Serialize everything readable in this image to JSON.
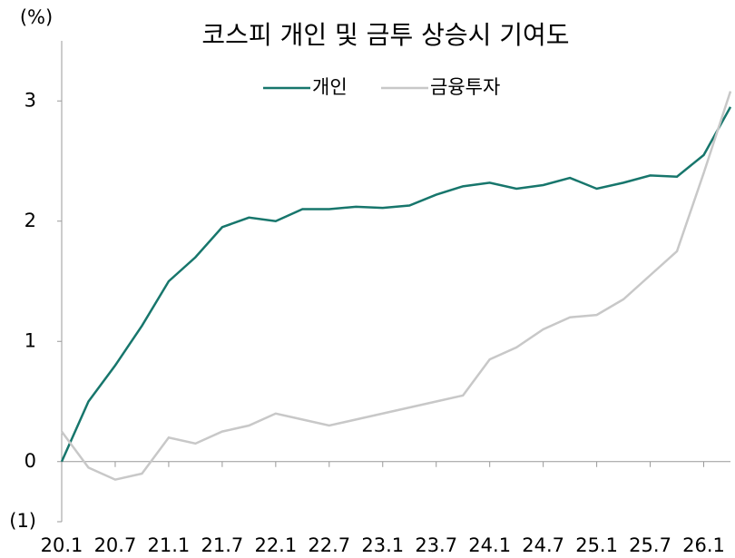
{
  "chart_data": {
    "type": "line",
    "title": "코스피 개인 및 금투 상승시 기여도",
    "y_label": "(%)",
    "x": [
      2020,
      2020.25,
      2020.5,
      2020.75,
      2021,
      2021.25,
      2021.5,
      2021.75,
      2022,
      2022.25,
      2022.5,
      2022.75,
      2023,
      2023.25,
      2023.5,
      2023.75,
      2024,
      2024.25,
      2024.5,
      2024.75,
      2025,
      2025.25,
      2025.5,
      2025.75,
      2026,
      2026.25
    ],
    "series": [
      {
        "name": "개인",
        "color": "#17766c",
        "values": [
          0,
          0.5,
          0.8,
          1.13,
          1.5,
          1.7,
          1.95,
          2.03,
          2.0,
          2.1,
          2.1,
          2.12,
          2.11,
          2.13,
          2.22,
          2.29,
          2.32,
          2.27,
          2.3,
          2.36,
          2.27,
          2.32,
          2.38,
          2.37,
          2.55,
          2.95
        ]
      },
      {
        "name": "금융투자",
        "color": "#c8c8c8",
        "values": [
          0.25,
          -0.05,
          -0.15,
          -0.1,
          0.2,
          0.15,
          0.25,
          0.3,
          0.4,
          0.35,
          0.3,
          0.35,
          0.4,
          0.45,
          0.5,
          0.55,
          0.85,
          0.95,
          1.1,
          1.2,
          1.22,
          1.35,
          1.55,
          1.75,
          2.4,
          3.08
        ]
      }
    ],
    "xlim": [
      2020,
      2026.25
    ],
    "xticks": [
      {
        "value": 2020,
        "label": "20.1"
      },
      {
        "value": 2020.5,
        "label": "20.7"
      },
      {
        "value": 2021,
        "label": "21.1"
      },
      {
        "value": 2021.5,
        "label": "21.7"
      },
      {
        "value": 2022,
        "label": "22.1"
      },
      {
        "value": 2022.5,
        "label": "22.7"
      },
      {
        "value": 2023,
        "label": "23.1"
      },
      {
        "value": 2023.5,
        "label": "23.7"
      },
      {
        "value": 2024,
        "label": "24.1"
      },
      {
        "value": 2024.5,
        "label": "24.7"
      },
      {
        "value": 2025,
        "label": "25.1"
      },
      {
        "value": 2025.5,
        "label": "25.7"
      },
      {
        "value": 2026,
        "label": "26.1"
      }
    ],
    "ylim": [
      -0.5,
      3.5
    ],
    "yticks": [
      {
        "value": -1,
        "label": "(1)"
      },
      0,
      1,
      2,
      3
    ],
    "legend": "top"
  }
}
